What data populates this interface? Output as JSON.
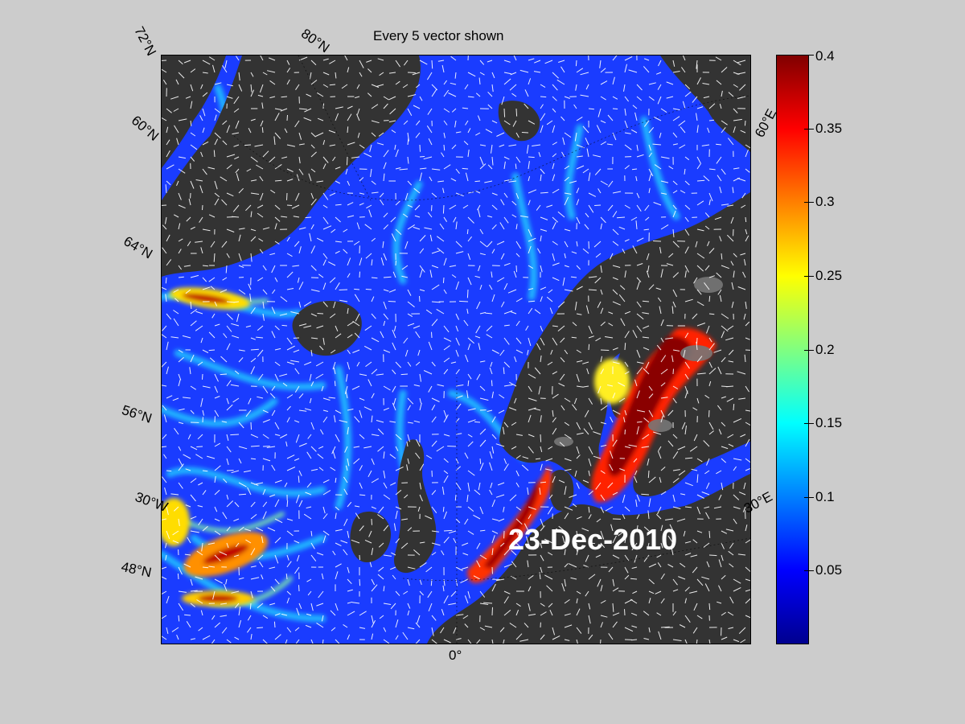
{
  "map": {
    "title": "Every 5 vector shown",
    "date": "23-Dec-2010",
    "grid_labels": {
      "lat_72": "72°N",
      "lat_80": "80°N",
      "lat_60": "60°N",
      "lat_64": "64°N",
      "lat_56": "56°N",
      "lon_30w": "30°W",
      "lat_48": "48°N",
      "lon_0": "0°",
      "lon_60e": "60°E",
      "lon_30e": "30°E"
    },
    "colorbar": {
      "ticks": [
        "0.4",
        "0.35",
        "0.3",
        "0.25",
        "0.2",
        "0.15",
        "0.1",
        "0.05"
      ],
      "min": 0,
      "max": 0.4,
      "colormap": "jet"
    },
    "colors": {
      "land": "#333333",
      "ice": "#777777",
      "ocean_low": "#1a3cff",
      "background": "#cccccc",
      "vectors": "#ffffff"
    }
  }
}
